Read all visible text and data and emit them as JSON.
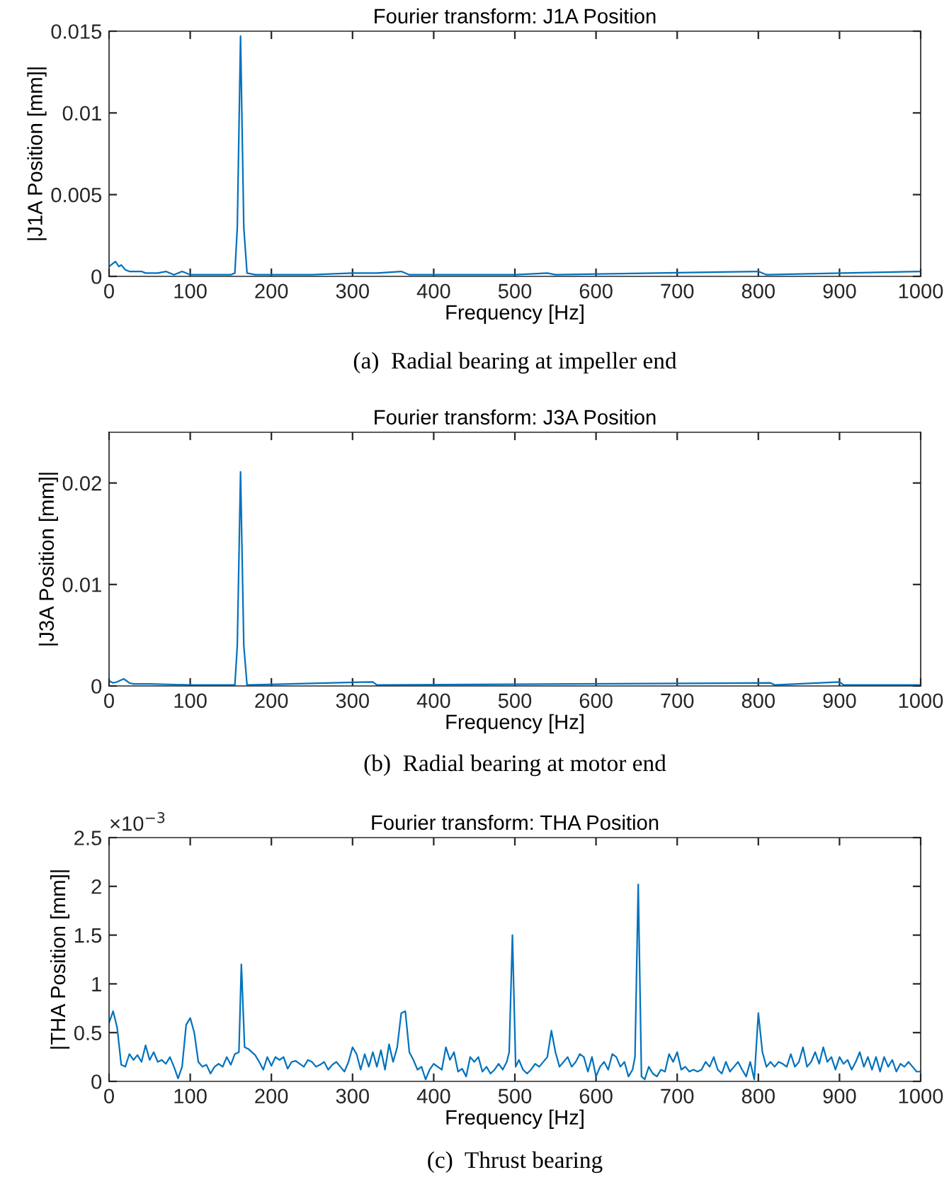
{
  "chart_data": [
    {
      "type": "line",
      "title": "Fourier transform: J1A Position",
      "xlabel": "Frequency [Hz]",
      "ylabel": "|J1A Position [mm]|",
      "grid": false,
      "marker": "none",
      "line_style": "solid",
      "xlim": [
        0,
        1000
      ],
      "xticks": [
        0,
        100,
        200,
        300,
        400,
        500,
        600,
        700,
        800,
        900,
        1000
      ],
      "ylim": [
        0,
        0.015
      ],
      "yticks": [
        0,
        0.005,
        0.01,
        0.015
      ],
      "annotations": [
        "(a)  Radial bearing at impeller end"
      ],
      "series": [
        {
          "color": "#0072bd",
          "x": [
            0,
            5,
            8,
            12,
            15,
            20,
            25,
            30,
            40,
            45,
            55,
            60,
            70,
            80,
            90,
            100,
            120,
            150,
            155,
            158,
            162,
            166,
            170,
            180,
            250,
            300,
            330,
            360,
            370,
            500,
            540,
            550,
            800,
            810,
            1000
          ],
          "values": [
            0.0006,
            0.0008,
            0.0009,
            0.0006,
            0.0007,
            0.0004,
            0.0003,
            0.0003,
            0.0003,
            0.0002,
            0.0002,
            0.0002,
            0.0003,
            0.0001,
            0.0003,
            0.0001,
            0.0001,
            0.0001,
            0.0002,
            0.003,
            0.0147,
            0.003,
            0.0002,
            0.0001,
            0.0001,
            0.0002,
            0.0002,
            0.0003,
            0.0001,
            0.0001,
            0.0002,
            0.0001,
            0.0003,
            0.0001,
            0.0003
          ]
        }
      ]
    },
    {
      "type": "line",
      "title": "Fourier transform: J3A Position",
      "xlabel": "Frequency [Hz]",
      "ylabel": "|J3A Position [mm]|",
      "grid": false,
      "marker": "none",
      "line_style": "solid",
      "xlim": [
        0,
        1000
      ],
      "xticks": [
        0,
        100,
        200,
        300,
        400,
        500,
        600,
        700,
        800,
        900,
        1000
      ],
      "ylim": [
        0,
        0.025
      ],
      "yticks": [
        0,
        0.01,
        0.02
      ],
      "annotations": [
        "(b)  Radial bearing at motor end"
      ],
      "series": [
        {
          "color": "#0072bd",
          "x": [
            0,
            5,
            10,
            18,
            25,
            30,
            50,
            100,
            155,
            158,
            162,
            166,
            170,
            325,
            330,
            815,
            820,
            900,
            905,
            1000
          ],
          "values": [
            0.0005,
            0.0003,
            0.0004,
            0.0007,
            0.0003,
            0.0002,
            0.0002,
            0.0001,
            0.0001,
            0.004,
            0.0211,
            0.004,
            0.0001,
            0.0004,
            0.0001,
            0.0003,
            0.0001,
            0.0004,
            0.0001,
            0.0001
          ]
        }
      ]
    },
    {
      "type": "line",
      "title": "Fourier transform: THA Position",
      "xlabel": "Frequency [Hz]",
      "ylabel": "|THA Position [mm]|",
      "grid": false,
      "marker": "none",
      "line_style": "solid",
      "xlim": [
        0,
        1000
      ],
      "xticks": [
        0,
        100,
        200,
        300,
        400,
        500,
        600,
        700,
        800,
        900,
        1000
      ],
      "ylim": [
        0,
        2.5
      ],
      "yticks": [
        0,
        0.5,
        1,
        1.5,
        2,
        2.5
      ],
      "annotations": [
        "×10$^{−3}$",
        "(c)  Thrust bearing"
      ],
      "series": [
        {
          "color": "#0072bd",
          "x": [
            0,
            5,
            10,
            15,
            20,
            25,
            30,
            35,
            40,
            45,
            50,
            55,
            60,
            65,
            70,
            75,
            80,
            85,
            90,
            95,
            100,
            105,
            110,
            115,
            120,
            125,
            130,
            135,
            140,
            145,
            150,
            155,
            160,
            163,
            167,
            172,
            180,
            185,
            190,
            195,
            200,
            205,
            210,
            215,
            220,
            225,
            230,
            240,
            245,
            250,
            255,
            260,
            265,
            270,
            275,
            280,
            285,
            290,
            295,
            300,
            305,
            310,
            315,
            320,
            325,
            330,
            335,
            340,
            345,
            350,
            355,
            360,
            365,
            370,
            375,
            380,
            385,
            390,
            395,
            400,
            405,
            410,
            415,
            420,
            425,
            430,
            435,
            440,
            445,
            450,
            455,
            460,
            465,
            470,
            475,
            480,
            485,
            490,
            493,
            497,
            501,
            505,
            510,
            515,
            520,
            525,
            530,
            540,
            545,
            550,
            555,
            560,
            565,
            570,
            575,
            580,
            585,
            590,
            595,
            600,
            605,
            610,
            615,
            620,
            625,
            630,
            635,
            640,
            645,
            648,
            652,
            656,
            660,
            665,
            670,
            675,
            680,
            685,
            690,
            695,
            700,
            705,
            710,
            715,
            720,
            725,
            730,
            735,
            740,
            745,
            750,
            755,
            760,
            765,
            770,
            775,
            780,
            785,
            790,
            795,
            800,
            805,
            810,
            815,
            820,
            825,
            830,
            835,
            840,
            845,
            850,
            855,
            860,
            865,
            870,
            875,
            880,
            885,
            890,
            895,
            900,
            905,
            910,
            915,
            920,
            925,
            930,
            935,
            940,
            945,
            950,
            955,
            960,
            965,
            970,
            975,
            980,
            985,
            990,
            995,
            1000
          ],
          "values": [
            0.6,
            0.72,
            0.55,
            0.17,
            0.15,
            0.28,
            0.22,
            0.27,
            0.2,
            0.37,
            0.22,
            0.3,
            0.2,
            0.22,
            0.18,
            0.25,
            0.15,
            0.03,
            0.15,
            0.58,
            0.65,
            0.5,
            0.2,
            0.15,
            0.17,
            0.08,
            0.15,
            0.18,
            0.15,
            0.25,
            0.17,
            0.28,
            0.3,
            1.2,
            0.35,
            0.33,
            0.27,
            0.2,
            0.12,
            0.25,
            0.16,
            0.25,
            0.22,
            0.25,
            0.13,
            0.2,
            0.21,
            0.15,
            0.22,
            0.2,
            0.15,
            0.17,
            0.2,
            0.12,
            0.17,
            0.2,
            0.15,
            0.1,
            0.2,
            0.35,
            0.28,
            0.12,
            0.28,
            0.15,
            0.3,
            0.15,
            0.32,
            0.12,
            0.38,
            0.2,
            0.35,
            0.7,
            0.72,
            0.3,
            0.22,
            0.12,
            0.15,
            0.02,
            0.12,
            0.18,
            0.15,
            0.12,
            0.35,
            0.22,
            0.3,
            0.1,
            0.13,
            0.05,
            0.25,
            0.2,
            0.25,
            0.1,
            0.15,
            0.08,
            0.12,
            0.18,
            0.12,
            0.2,
            0.3,
            1.5,
            0.15,
            0.22,
            0.12,
            0.08,
            0.12,
            0.18,
            0.15,
            0.25,
            0.52,
            0.3,
            0.15,
            0.2,
            0.25,
            0.15,
            0.2,
            0.28,
            0.25,
            0.1,
            0.25,
            0.05,
            0.15,
            0.2,
            0.12,
            0.28,
            0.25,
            0.15,
            0.2,
            0.05,
            0.12,
            0.25,
            2.02,
            0.05,
            0.02,
            0.15,
            0.08,
            0.05,
            0.12,
            0.1,
            0.28,
            0.2,
            0.3,
            0.12,
            0.15,
            0.1,
            0.12,
            0.1,
            0.12,
            0.2,
            0.15,
            0.25,
            0.12,
            0.08,
            0.2,
            0.1,
            0.15,
            0.2,
            0.12,
            0.05,
            0.2,
            0.02,
            0.7,
            0.3,
            0.15,
            0.2,
            0.15,
            0.2,
            0.18,
            0.15,
            0.28,
            0.15,
            0.2,
            0.35,
            0.15,
            0.2,
            0.3,
            0.18,
            0.35,
            0.2,
            0.25,
            0.12,
            0.25,
            0.18,
            0.22,
            0.12,
            0.2,
            0.3,
            0.15,
            0.25,
            0.12,
            0.25,
            0.1,
            0.25,
            0.15,
            0.22,
            0.1,
            0.18,
            0.15,
            0.2,
            0.15,
            0.1,
            0.1
          ]
        }
      ]
    }
  ]
}
